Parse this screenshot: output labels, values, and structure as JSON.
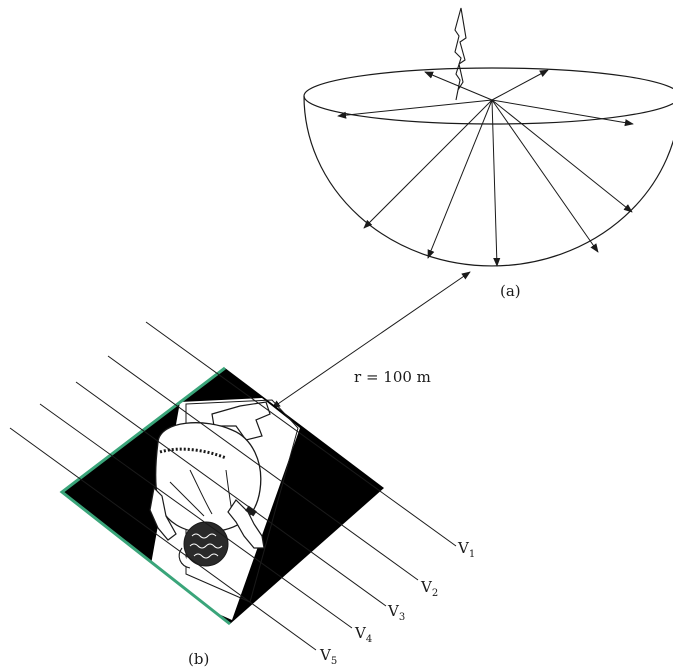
{
  "figure": {
    "label_a": "(a)",
    "label_b": "(b)",
    "distance_label": "r = 100 m",
    "lines": [
      {
        "letter": "V",
        "sub": "1"
      },
      {
        "letter": "V",
        "sub": "2"
      },
      {
        "letter": "V",
        "sub": "3"
      },
      {
        "letter": "V",
        "sub": "4"
      },
      {
        "letter": "V",
        "sub": "5"
      }
    ],
    "colors": {
      "ink": "#1a1a1a",
      "floor": "#000000",
      "edge": "#3aa57a"
    }
  }
}
